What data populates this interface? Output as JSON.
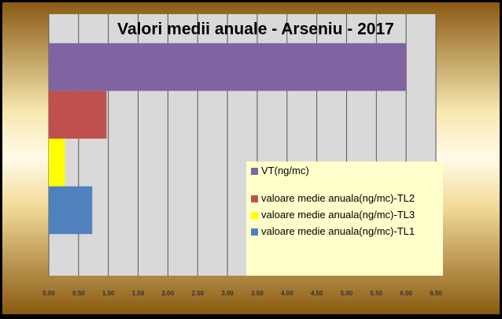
{
  "chart_data": {
    "type": "bar",
    "orientation": "horizontal",
    "title": "Valori medii anuale - Arseniu - 2017",
    "categories": [
      null
    ],
    "series": [
      {
        "name": "VT(ng/mc)",
        "color": "#8064a2",
        "values": [
          6.0
        ]
      },
      {
        "name": "valoare medie anuala(ng/mc)-TL2",
        "color": "#c0504d",
        "values": [
          0.97
        ]
      },
      {
        "name": "valoare medie anuala(ng/mc)-TL3",
        "color": "#ffff00",
        "values": [
          0.27
        ]
      },
      {
        "name": "valoare medie anuala(ng/mc)-TL1",
        "color": "#4f81bd",
        "values": [
          0.73
        ]
      }
    ],
    "xlim": [
      0,
      6.5
    ],
    "xticks": [
      {
        "value": 0,
        "label": "0.00"
      },
      {
        "value": 0.5,
        "label": "0.50"
      },
      {
        "value": 1,
        "label": "1.00"
      },
      {
        "value": 1.5,
        "label": "1.50"
      },
      {
        "value": 2,
        "label": "2.00"
      },
      {
        "value": 2.5,
        "label": "2.50"
      },
      {
        "value": 3,
        "label": "3.00"
      },
      {
        "value": 3.5,
        "label": "3.50"
      },
      {
        "value": 4,
        "label": "4.00"
      },
      {
        "value": 4.5,
        "label": "4.50"
      },
      {
        "value": 5,
        "label": "5.00"
      },
      {
        "value": 5.5,
        "label": "5.50"
      },
      {
        "value": 6,
        "label": "6.00"
      },
      {
        "value": 6.5,
        "label": "6.50"
      }
    ],
    "grid": true,
    "legend": "lower right"
  }
}
